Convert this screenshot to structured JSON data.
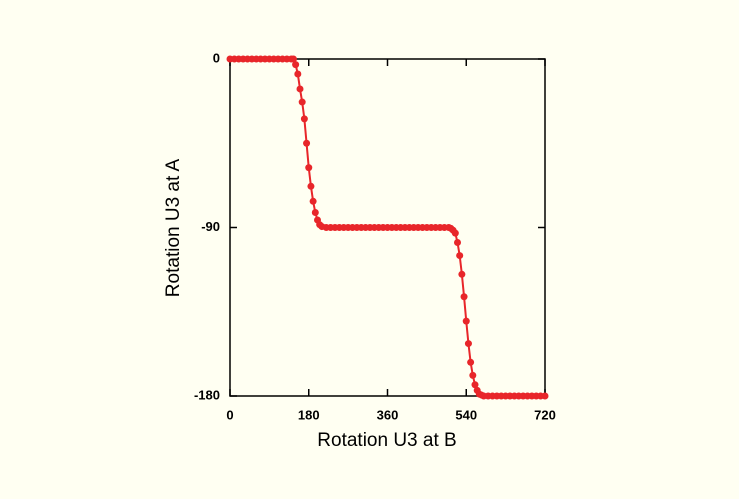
{
  "chart_data": {
    "type": "line",
    "xlabel": "Rotation U3 at B",
    "ylabel": "Rotation U3 at A",
    "x": [
      0,
      10,
      20,
      30,
      40,
      50,
      60,
      70,
      80,
      90,
      100,
      110,
      120,
      130,
      140,
      145,
      150,
      155,
      160,
      165,
      170,
      175,
      180,
      185,
      190,
      195,
      200,
      205,
      210,
      220,
      230,
      240,
      250,
      260,
      270,
      280,
      290,
      300,
      310,
      320,
      330,
      340,
      350,
      360,
      370,
      380,
      390,
      400,
      410,
      420,
      430,
      440,
      450,
      460,
      470,
      480,
      490,
      500,
      505,
      510,
      515,
      520,
      525,
      530,
      535,
      540,
      545,
      550,
      555,
      560,
      565,
      570,
      575,
      580,
      590,
      600,
      610,
      620,
      630,
      640,
      650,
      660,
      670,
      680,
      690,
      700,
      710,
      720
    ],
    "values": [
      0,
      0,
      0,
      0,
      0,
      0,
      0,
      0,
      0,
      0,
      0,
      0,
      0,
      0,
      0,
      0,
      -3,
      -8,
      -16,
      -23,
      -32,
      -45,
      -58,
      -68,
      -76,
      -82,
      -86,
      -88.5,
      -89.5,
      -90,
      -90,
      -90,
      -90,
      -90,
      -90,
      -90,
      -90,
      -90,
      -90,
      -90,
      -90,
      -90,
      -90,
      -90,
      -90,
      -90,
      -90,
      -90,
      -90,
      -90,
      -90,
      -90,
      -90,
      -90,
      -90,
      -90,
      -90,
      -90,
      -90.5,
      -91.5,
      -93,
      -98,
      -105,
      -115,
      -127,
      -140,
      -152,
      -162,
      -169,
      -174,
      -177,
      -179,
      -179.5,
      -180,
      -180,
      -180,
      -180,
      -180,
      -180,
      -180,
      -180,
      -180,
      -180,
      -180,
      -180,
      -180,
      -180,
      -180
    ],
    "color": "#e8262a",
    "xlim": [
      0,
      720
    ],
    "xticks": [
      0,
      180,
      360,
      540,
      720
    ],
    "ylim": [
      -180,
      0
    ],
    "yticks": [
      0,
      -90,
      -180
    ]
  }
}
